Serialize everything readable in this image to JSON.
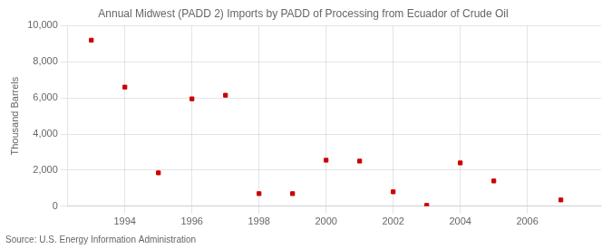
{
  "chart_data": {
    "type": "scatter",
    "title": "Annual Midwest (PADD 2) Imports by PADD of Processing from Ecuador of Crude Oil",
    "ylabel": "Thousand Barrels",
    "source": "Source: U.S. Energy Information Administration",
    "x": [
      1993,
      1994,
      1995,
      1996,
      1997,
      1998,
      1999,
      2000,
      2001,
      2002,
      2003,
      2004,
      2005,
      2007
    ],
    "values": [
      9200,
      6600,
      1850,
      5950,
      6150,
      700,
      700,
      2550,
      2500,
      800,
      50,
      2400,
      1400,
      350
    ],
    "color": "#cc0000",
    "marker": "square",
    "xlim": [
      1992.3,
      2008.2
    ],
    "xticks": [
      1994,
      1996,
      1998,
      2000,
      2002,
      2004,
      2006
    ],
    "ylim": [
      0,
      10000
    ],
    "yticks": [
      0,
      {
        "value": 2000,
        "label": "2,000"
      },
      {
        "value": 4000,
        "label": "4,000"
      },
      {
        "value": 6000,
        "label": "6,000"
      },
      {
        "value": 8000,
        "label": "8,000"
      },
      {
        "value": 10000,
        "label": "10,000"
      }
    ],
    "grid": true
  }
}
